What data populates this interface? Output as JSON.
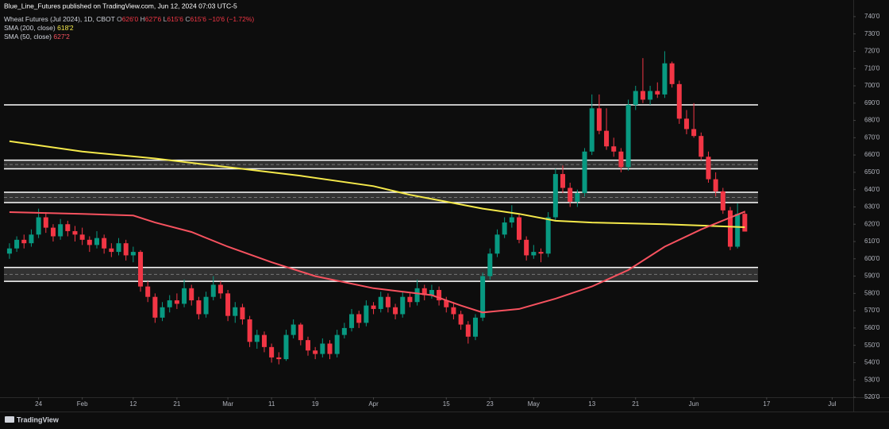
{
  "header": {
    "text": "Blue_Line_Futures published on TradingView.com, Jun 12, 2024 07:03 UTC-5"
  },
  "footer": {
    "brand": "TradingView"
  },
  "chart_data": {
    "type": "candlestick",
    "name": "Wheat Futures (Jul 2024), 1D, CBOT",
    "quote": [
      {
        "key": "O",
        "value": "626'0"
      },
      {
        "key": "H",
        "value": "627'6"
      },
      {
        "key": "L",
        "value": "615'6"
      },
      {
        "key": "C",
        "value": "615'6"
      }
    ],
    "change": "−10'6 (−1.72%)",
    "up_color": "#089981",
    "down_color": "#f23645",
    "open": [
      603,
      606,
      611,
      609,
      614,
      624,
      618,
      613,
      620,
      616,
      614,
      611,
      608,
      612,
      606,
      604,
      609,
      602,
      604,
      584,
      578,
      566,
      572,
      576,
      574,
      583,
      576,
      568,
      578,
      585,
      580,
      567,
      572,
      565,
      552,
      556,
      549,
      543,
      542,
      556,
      562,
      553,
      547,
      545,
      551,
      545,
      556,
      560,
      568,
      563,
      573,
      571,
      578,
      572,
      568,
      578,
      575,
      583,
      579,
      582,
      576,
      572,
      568,
      562,
      555,
      566,
      590,
      603,
      614,
      621,
      624,
      611,
      602,
      604,
      603,
      624,
      649,
      641,
      633,
      638,
      662,
      687,
      674,
      665,
      662,
      653,
      689,
      697,
      692,
      697,
      695,
      713,
      701,
      681,
      675,
      671,
      659,
      646,
      639,
      628,
      607,
      626
    ],
    "high": [
      609,
      613,
      614,
      617,
      629,
      627,
      620,
      623,
      622,
      619,
      618,
      613,
      616,
      614,
      609,
      612,
      611,
      607,
      605,
      587,
      580,
      575,
      579,
      580,
      588,
      585,
      578,
      581,
      590,
      587,
      582,
      575,
      574,
      567,
      559,
      558,
      551,
      546,
      559,
      565,
      563,
      555,
      549,
      554,
      553,
      559,
      563,
      571,
      570,
      576,
      575,
      581,
      580,
      574,
      581,
      580,
      588,
      585,
      585,
      584,
      578,
      575,
      570,
      564,
      568,
      592,
      606,
      617,
      624,
      631,
      626,
      613,
      608,
      606,
      627,
      652,
      654,
      644,
      640,
      664,
      695,
      695,
      687,
      670,
      664,
      692,
      700,
      716,
      700,
      702,
      720,
      714,
      703,
      686,
      690,
      673,
      662,
      650,
      641,
      630,
      632,
      627.75
    ],
    "low": [
      600,
      604,
      606,
      607,
      612,
      615,
      610,
      611,
      613,
      610,
      608,
      604,
      606,
      603,
      601,
      602,
      599,
      598,
      581,
      575,
      563,
      564,
      569,
      571,
      572,
      573,
      565,
      566,
      576,
      577,
      564,
      563,
      562,
      549,
      548,
      546,
      540,
      539,
      541,
      554,
      550,
      544,
      542,
      543,
      542,
      543,
      554,
      558,
      560,
      561,
      568,
      569,
      569,
      565,
      566,
      572,
      573,
      576,
      577,
      573,
      569,
      565,
      559,
      551,
      553,
      564,
      588,
      601,
      612,
      618,
      609,
      599,
      600,
      598,
      601,
      622,
      638,
      630,
      630,
      636,
      660,
      672,
      663,
      659,
      650,
      651,
      686,
      690,
      689,
      693,
      693,
      699,
      678,
      672,
      670,
      657,
      644,
      636,
      626,
      605,
      606,
      615.75
    ],
    "close": [
      606,
      611,
      609,
      614,
      624,
      618,
      613,
      620,
      616,
      614,
      611,
      608,
      612,
      606,
      604,
      609,
      602,
      604,
      584,
      578,
      566,
      572,
      576,
      574,
      583,
      576,
      568,
      578,
      585,
      580,
      567,
      572,
      565,
      552,
      556,
      549,
      543,
      542,
      556,
      562,
      553,
      547,
      545,
      551,
      545,
      556,
      560,
      568,
      563,
      573,
      571,
      578,
      572,
      568,
      578,
      575,
      583,
      579,
      582,
      576,
      572,
      568,
      562,
      555,
      566,
      590,
      603,
      614,
      621,
      624,
      611,
      602,
      604,
      603,
      624,
      649,
      641,
      633,
      638,
      662,
      687,
      674,
      665,
      662,
      653,
      689,
      697,
      692,
      697,
      695,
      713,
      701,
      681,
      675,
      671,
      659,
      646,
      639,
      628,
      607,
      626,
      615.75
    ],
    "indicators": [
      {
        "name": "SMA (200, close)",
        "value_label": "618'2",
        "color": "#f5e94b",
        "x": [
          0,
          10,
          20,
          30,
          40,
          50,
          55,
          60,
          65,
          70,
          75,
          80,
          90,
          101
        ],
        "values": [
          668,
          662,
          658,
          653,
          648,
          642,
          637,
          633,
          629,
          626,
          622,
          621,
          620,
          618.25
        ]
      },
      {
        "name": "SMA (50, close)",
        "value_label": "627'2",
        "color": "#f7525f",
        "x": [
          0,
          10,
          17,
          20,
          25,
          30,
          36,
          42,
          50,
          58,
          62,
          65,
          70,
          75,
          80,
          85,
          90,
          95,
          101
        ],
        "values": [
          627,
          626,
          625,
          621,
          615.5,
          607,
          598,
          590,
          583,
          579,
          573,
          569,
          571,
          577,
          584,
          593.5,
          607,
          617,
          627.25
        ]
      }
    ],
    "hlines": [
      689
    ],
    "zones": [
      [
        652,
        657
      ],
      [
        632.5,
        638.5
      ],
      [
        587,
        595
      ]
    ],
    "level_color": "#ffffff",
    "xlim": [
      -1.3,
      115.9
    ],
    "xticks": [
      {
        "value": 4,
        "label": "24"
      },
      {
        "value": 10,
        "label": "Feb"
      },
      {
        "value": 17,
        "label": "12"
      },
      {
        "value": 23,
        "label": "21"
      },
      {
        "value": 30,
        "label": "Mar"
      },
      {
        "value": 36,
        "label": "11"
      },
      {
        "value": 42,
        "label": "19"
      },
      {
        "value": 50,
        "label": "Apr"
      },
      {
        "value": 60,
        "label": "15"
      },
      {
        "value": 66,
        "label": "23"
      },
      {
        "value": 72,
        "label": "May"
      },
      {
        "value": 80,
        "label": "13"
      },
      {
        "value": 86,
        "label": "21"
      },
      {
        "value": 94,
        "label": "Jun"
      },
      {
        "value": 104,
        "label": "17"
      },
      {
        "value": 113,
        "label": "Jul"
      }
    ],
    "ylim": [
      520,
      749.6
    ],
    "yticks": [
      {
        "value": 520,
        "label": "520'0"
      },
      {
        "value": 530,
        "label": "530'0"
      },
      {
        "value": 540,
        "label": "540'0"
      },
      {
        "value": 550,
        "label": "550'0"
      },
      {
        "value": 560,
        "label": "560'0"
      },
      {
        "value": 570,
        "label": "570'0"
      },
      {
        "value": 580,
        "label": "580'0"
      },
      {
        "value": 590,
        "label": "590'0"
      },
      {
        "value": 600,
        "label": "600'0"
      },
      {
        "value": 610,
        "label": "610'0"
      },
      {
        "value": 620,
        "label": "620'0"
      },
      {
        "value": 630,
        "label": "630'0"
      },
      {
        "value": 640,
        "label": "640'0"
      },
      {
        "value": 650,
        "label": "650'0"
      },
      {
        "value": 660,
        "label": "660'0"
      },
      {
        "value": 670,
        "label": "670'0"
      },
      {
        "value": 680,
        "label": "680'0"
      },
      {
        "value": 690,
        "label": "690'0"
      },
      {
        "value": 700,
        "label": "700'0"
      },
      {
        "value": 710,
        "label": "710'0"
      },
      {
        "value": 720,
        "label": "720'0"
      },
      {
        "value": 730,
        "label": "730'0"
      },
      {
        "value": 740,
        "label": "740'0"
      }
    ]
  }
}
